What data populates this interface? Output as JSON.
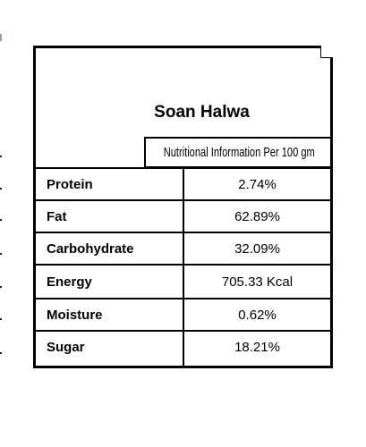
{
  "product": {
    "title": "Soan Halwa",
    "subtitle": "Nutritional Information Per 100 gm"
  },
  "nutrients": [
    {
      "label": "Protein",
      "value": "2.74%"
    },
    {
      "label": "Fat",
      "value": "62.89%"
    },
    {
      "label": "Carbohydrate",
      "value": "32.09%"
    },
    {
      "label": "Energy",
      "value": "705.33 Kcal"
    },
    {
      "label": "Moisture",
      "value": "0.62%"
    },
    {
      "label": "Sugar",
      "value": "18.21%"
    }
  ]
}
